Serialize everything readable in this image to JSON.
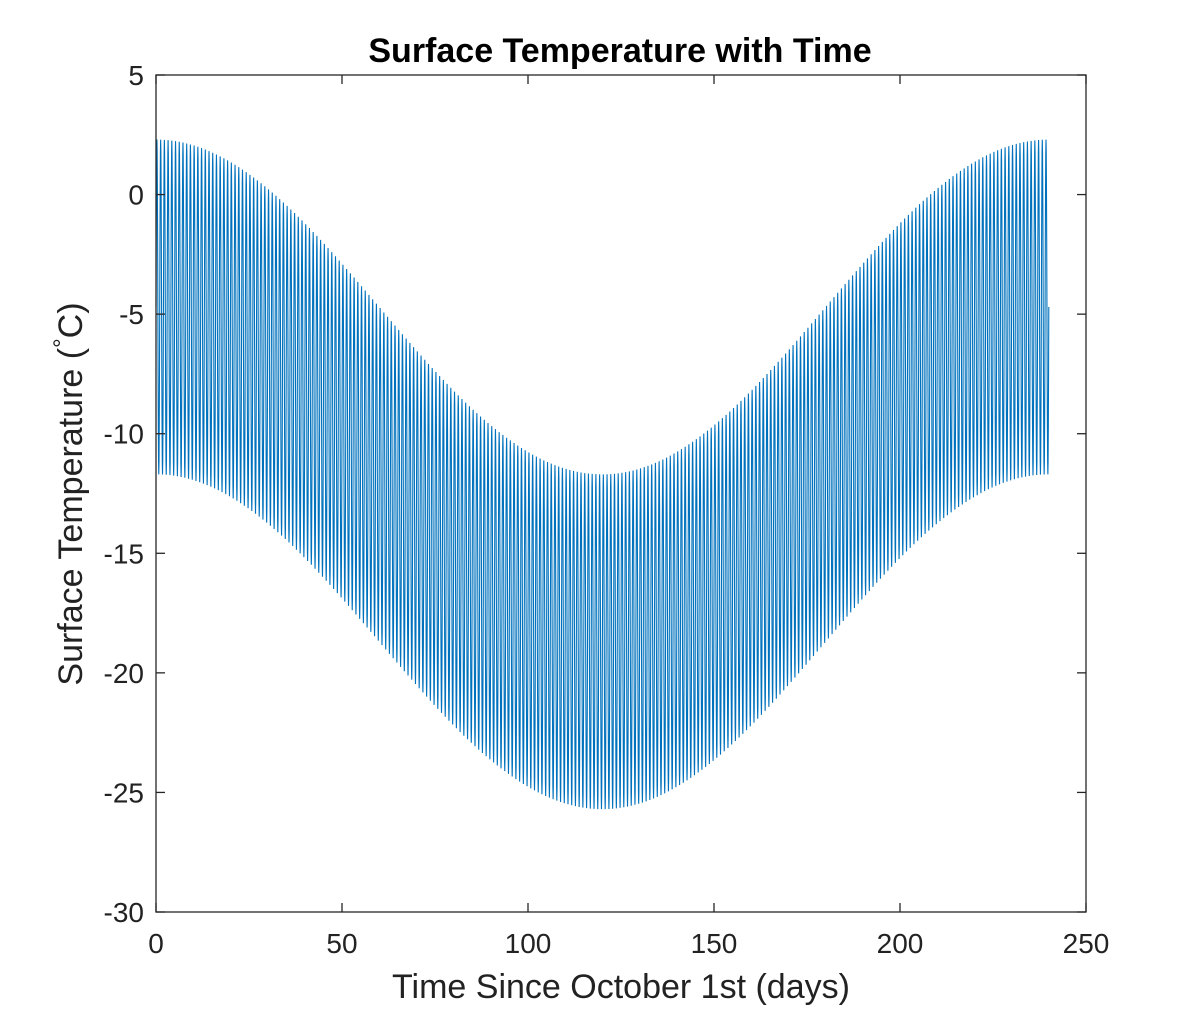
{
  "chart_data": {
    "type": "line",
    "title": "Surface Temperature with Time",
    "xlabel": "Time Since October 1st (days)",
    "ylabel": "Surface Temperature (°C)",
    "ylabel_parts": {
      "before": "Surface Temperature (",
      "degree": "°",
      "after": "C)"
    },
    "xlim": [
      0,
      250
    ],
    "ylim": [
      -30,
      5
    ],
    "xticks": [
      0,
      50,
      100,
      150,
      200,
      250
    ],
    "yticks": [
      5,
      0,
      -5,
      -10,
      -15,
      -20,
      -25,
      -30
    ],
    "xtick_labels": [
      "0",
      "50",
      "100",
      "150",
      "200",
      "250"
    ],
    "ytick_labels": [
      "5",
      "0",
      "-5",
      "-10",
      "-15",
      "-20",
      "-25",
      "-30"
    ],
    "grid": false,
    "series": [
      {
        "color": "#0072BD",
        "x_start": 0,
        "x_end": 240,
        "period_days": 1,
        "daily_mean_at_day_0": -4.7,
        "daily_mean_at_day_120": -18.7,
        "daily_range": 14,
        "daily_max_at_day_0": 2.3,
        "daily_min_at_day_0": -11.7,
        "daily_max_at_day_120": -11.7,
        "daily_min_at_day_120": -25.7,
        "annual_period_days": 240
      }
    ]
  }
}
